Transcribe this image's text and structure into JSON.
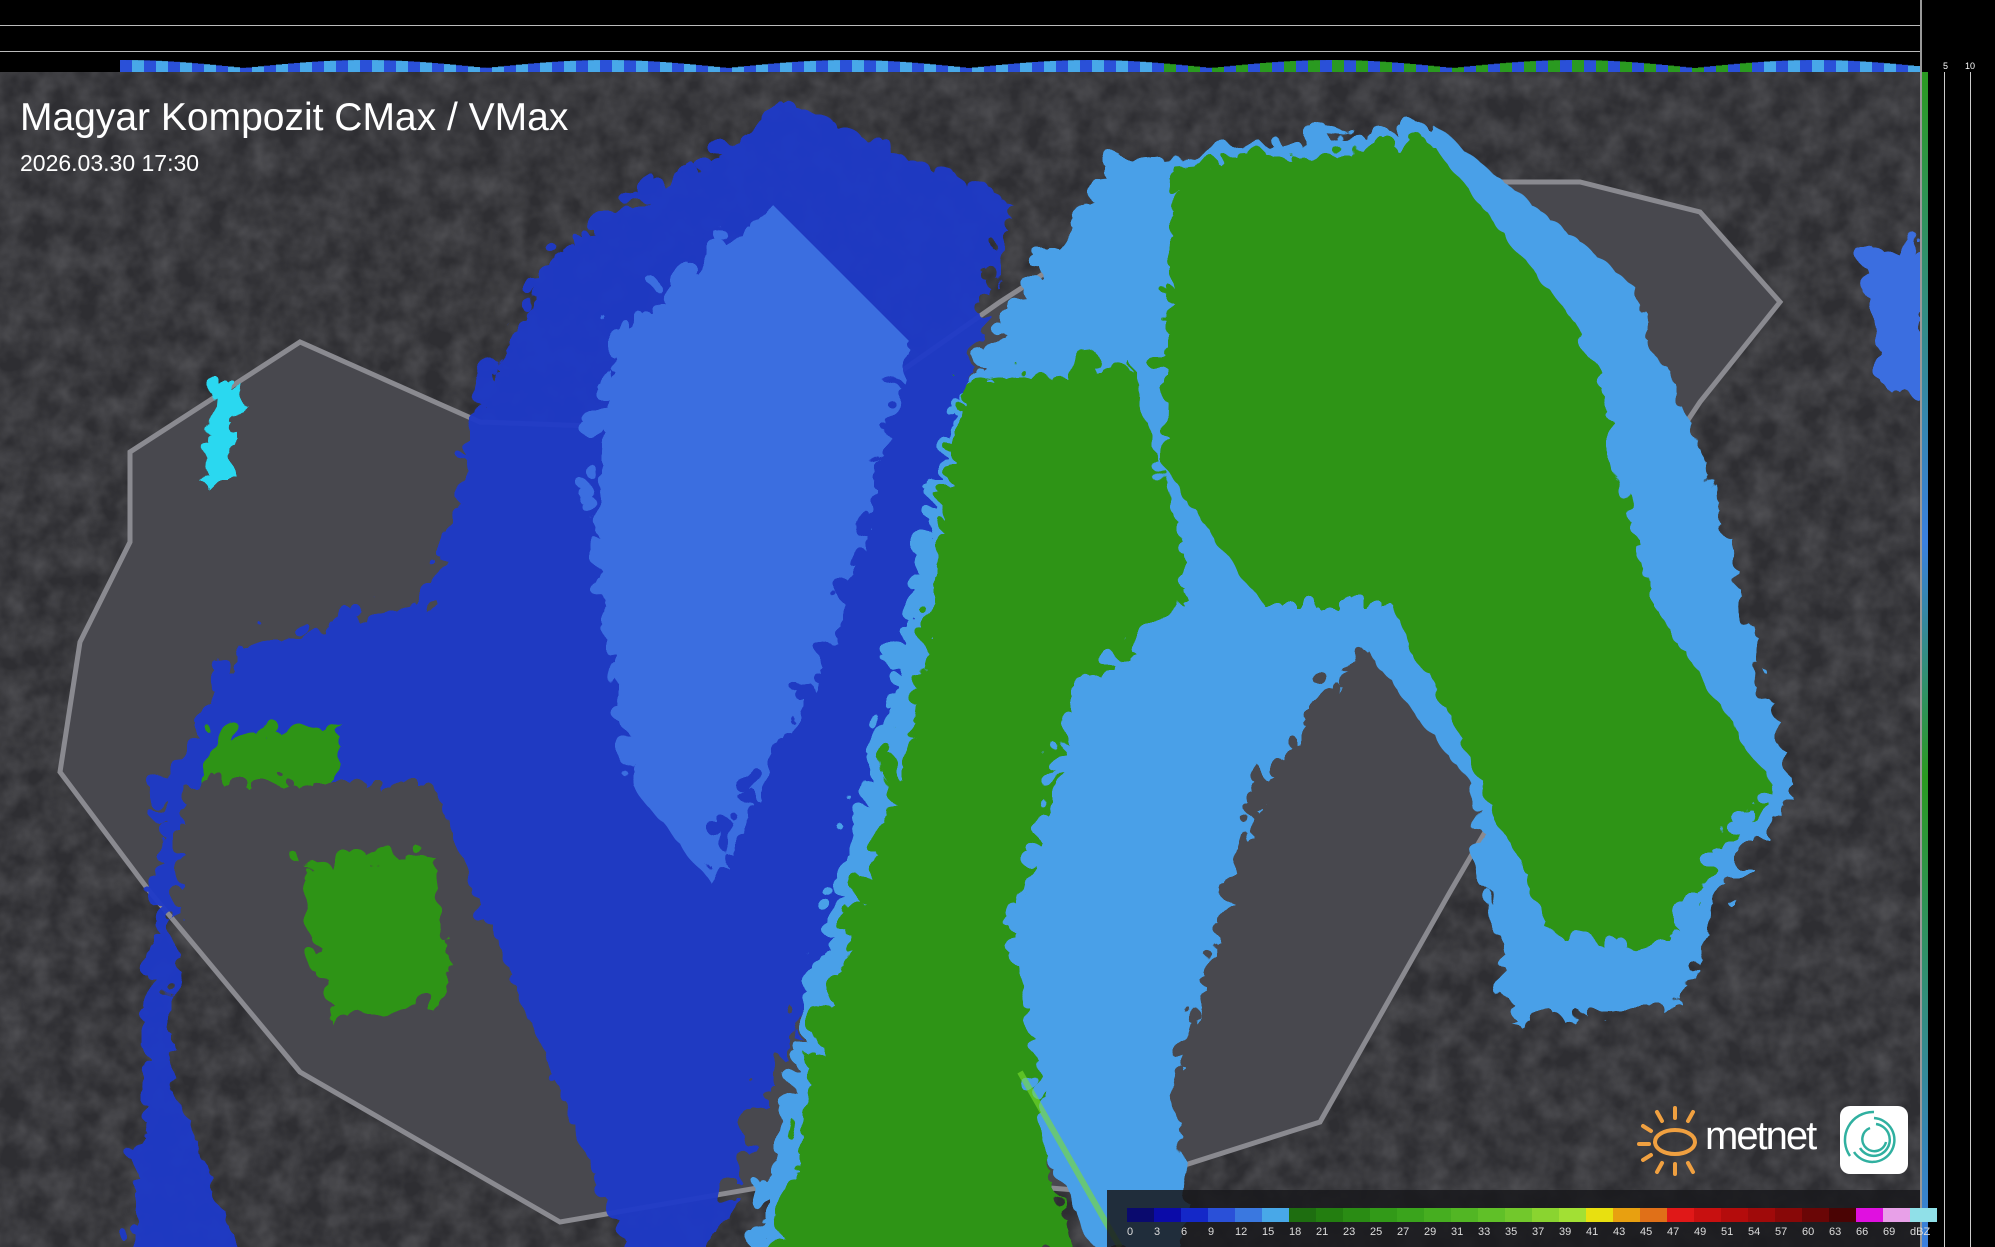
{
  "header": {
    "title": "Magyar Kompozit CMax / VMax",
    "timestamp": "2026.03.30 17:30"
  },
  "profile_axes": {
    "top_ticks": [
      "10",
      "5"
    ],
    "right_ticks": [
      "5",
      "10"
    ]
  },
  "legend": {
    "unit": "dBZ",
    "labels": [
      "0",
      "3",
      "6",
      "9",
      "12",
      "15",
      "18",
      "21",
      "23",
      "25",
      "27",
      "29",
      "31",
      "33",
      "35",
      "37",
      "39",
      "41",
      "43",
      "45",
      "47",
      "49",
      "51",
      "54",
      "57",
      "60",
      "63",
      "66",
      "69"
    ],
    "colors": [
      "#0a0a6e",
      "#0b0ba8",
      "#1428c8",
      "#2a50d8",
      "#3a78e0",
      "#48a8e8",
      "#1e6e10",
      "#237e10",
      "#2a8c14",
      "#329a18",
      "#3aa41c",
      "#46ae20",
      "#52b624",
      "#60c028",
      "#72c82c",
      "#8ad430",
      "#a2e034",
      "#e8e010",
      "#e8a010",
      "#e07018",
      "#e01818",
      "#c81010",
      "#b40c0c",
      "#a00a0a",
      "#880808",
      "#6a0606",
      "#4a0404",
      "#e010e0",
      "#e8a0e8"
    ],
    "extra_color": "#90e0e8"
  },
  "branding": {
    "logo_text": "metnet",
    "sun_color": "#f0a040",
    "swirl_color": "#30b0a0"
  }
}
